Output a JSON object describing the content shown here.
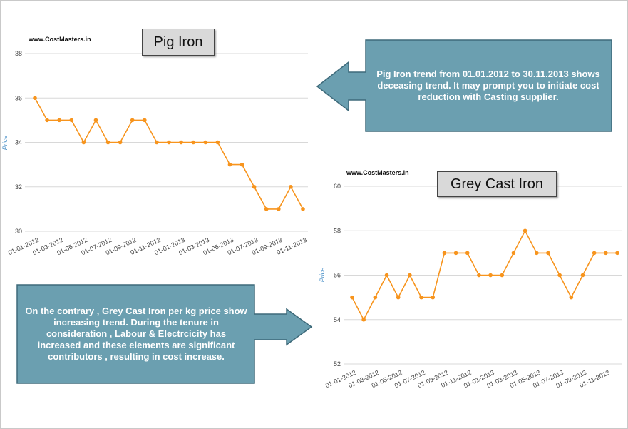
{
  "colors": {
    "line": "#f7941d",
    "grid": "#d8d8d8",
    "callout_fill": "#6b9fb0",
    "callout_stroke": "#3e6a7a"
  },
  "chart_data": [
    {
      "type": "line",
      "title": "Pig Iron",
      "watermark": "www.CostMasters.in",
      "ylabel": "Price",
      "ylim": [
        30,
        38
      ],
      "yticks": [
        30,
        32,
        34,
        36,
        38
      ],
      "xtick_labels": [
        "01-01-2012",
        "01-03-2012",
        "01-05-2012",
        "01-07-2012",
        "01-09-2012",
        "01-11-2012",
        "01-01-2013",
        "01-03-2013",
        "01-05-2013",
        "01-07-2013",
        "01-09-2013",
        "01-11-2013"
      ],
      "x": [
        "2012-01-01",
        "2012-02-01",
        "2012-03-01",
        "2012-04-01",
        "2012-05-01",
        "2012-06-01",
        "2012-07-01",
        "2012-08-01",
        "2012-09-01",
        "2012-10-01",
        "2012-11-01",
        "2012-12-01",
        "2013-01-01",
        "2013-02-01",
        "2013-03-01",
        "2013-04-01",
        "2013-05-01",
        "2013-06-01",
        "2013-07-01",
        "2013-08-01",
        "2013-09-01",
        "2013-10-01",
        "2013-11-01"
      ],
      "values": [
        36,
        35,
        35,
        35,
        34,
        35,
        34,
        34,
        35,
        35,
        34,
        34,
        34,
        34,
        34,
        34,
        33,
        33,
        32,
        31,
        31,
        32,
        31
      ],
      "grid": true
    },
    {
      "type": "line",
      "title": "Grey Cast Iron",
      "watermark": "www.CostMasters.in",
      "ylabel": "Price",
      "ylim": [
        52,
        60
      ],
      "yticks": [
        52,
        54,
        56,
        58,
        60
      ],
      "xtick_labels": [
        "01-01-2012",
        "01-03-2012",
        "01-05-2012",
        "01-07-2012",
        "01-09-2012",
        "01-11-2012",
        "01-01-2013",
        "01-03-2013",
        "01-05-2013",
        "01-07-2013",
        "01-09-2013",
        "01-11-2013"
      ],
      "x": [
        "2012-01-01",
        "2012-02-01",
        "2012-03-01",
        "2012-04-01",
        "2012-05-01",
        "2012-06-01",
        "2012-07-01",
        "2012-08-01",
        "2012-09-01",
        "2012-10-01",
        "2012-11-01",
        "2012-12-01",
        "2013-01-01",
        "2013-02-01",
        "2013-03-01",
        "2013-04-01",
        "2013-05-01",
        "2013-06-01",
        "2013-07-01",
        "2013-08-01",
        "2013-09-01",
        "2013-10-01",
        "2013-11-01",
        "2013-12-01"
      ],
      "values": [
        55,
        54,
        55,
        56,
        55,
        56,
        55,
        55,
        57,
        57,
        57,
        56,
        56,
        56,
        57,
        58,
        57,
        57,
        56,
        55,
        56,
        57,
        57,
        57
      ],
      "grid": true
    }
  ],
  "annotations": {
    "pig_iron_note": "Pig Iron trend from 01.01.2012 to 30.11.2013 shows deceasing trend. It may prompt you to initiate cost reduction with Casting supplier.",
    "grey_iron_note": "On the contrary , Grey Cast Iron per kg price show increasing trend. During the tenure in consideration , Labour & Electrcicity has increased and these elements are significant contributors , resulting in cost increase."
  }
}
